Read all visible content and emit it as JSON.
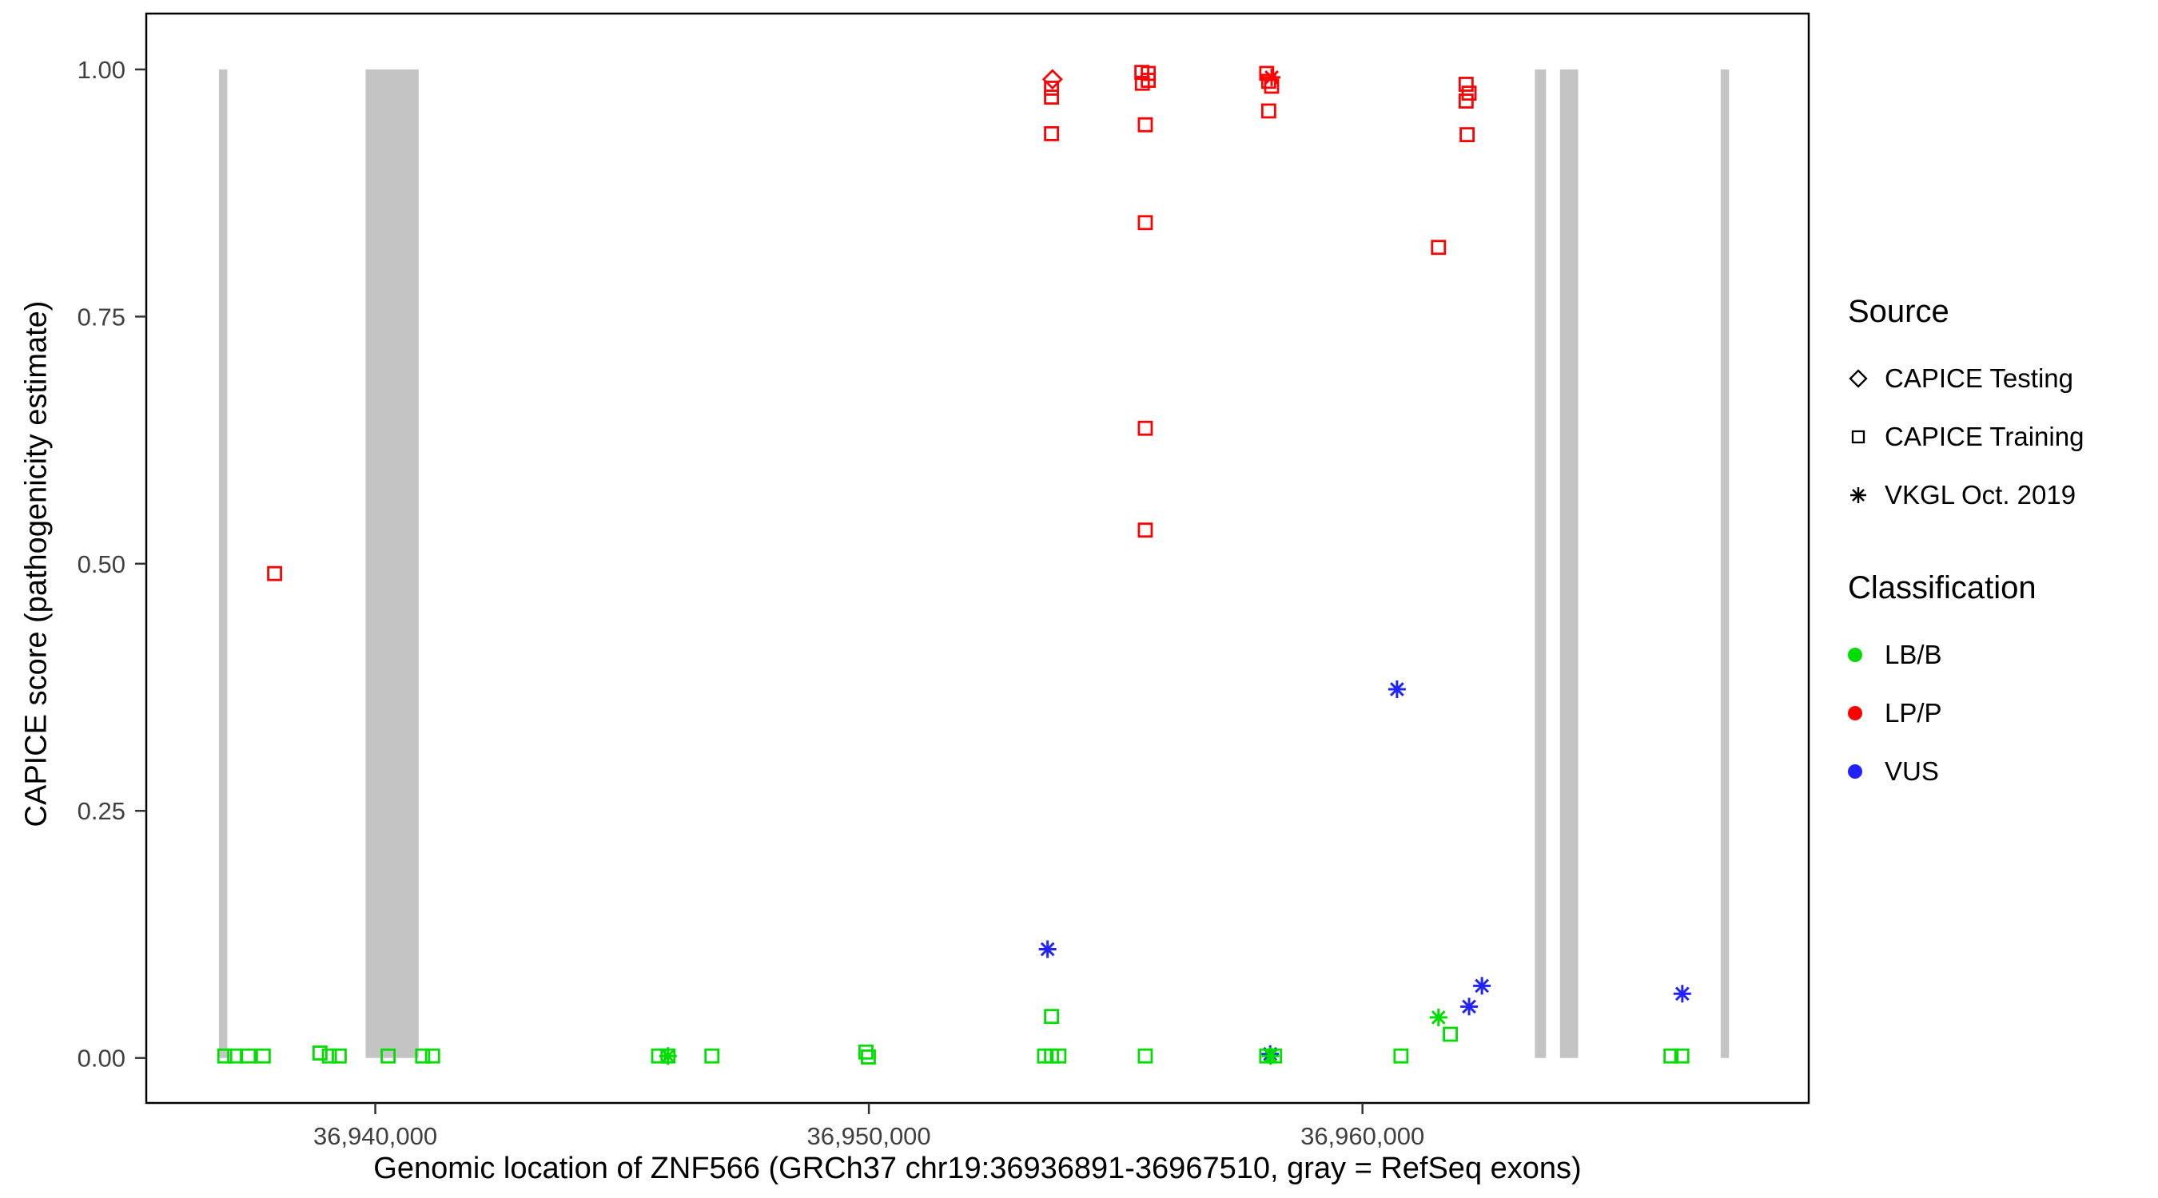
{
  "chart_data": {
    "type": "scatter",
    "title": "",
    "xlabel": "Genomic location of ZNF566 (GRCh37 chr19:36936891-36967510, gray = RefSeq exons)",
    "ylabel": "CAPICE score (pathogenicity estimate)",
    "xlim": [
      36935360,
      36969041
    ],
    "ylim": [
      -0.0455,
      1.0565
    ],
    "x_ticks": [
      {
        "value": 36940000,
        "label": "36,940,000"
      },
      {
        "value": 36950000,
        "label": "36,950,000"
      },
      {
        "value": 36960000,
        "label": "36,960,000"
      }
    ],
    "y_ticks": [
      {
        "value": 0.0,
        "label": "0.00"
      },
      {
        "value": 0.25,
        "label": "0.25"
      },
      {
        "value": 0.5,
        "label": "0.50"
      },
      {
        "value": 0.75,
        "label": "0.75"
      },
      {
        "value": 1.0,
        "label": "1.00"
      }
    ],
    "grid": false,
    "legend_position": "right",
    "colors": {
      "LB/B": "#00dd00",
      "LP/P": "#ff0000",
      "VUS": "#2222ff",
      "exon": "#c4c4c4",
      "axis_text": "#404040"
    },
    "exons": [
      [
        36936832,
        36937002
      ],
      [
        36939804,
        36940879
      ],
      [
        36963493,
        36963719
      ],
      [
        36964002,
        36964370
      ],
      [
        36967257,
        36967427
      ]
    ],
    "exon_band_yrange": [
      0.0,
      1.0
    ],
    "points": [
      {
        "x": 36937960,
        "y": 0.49,
        "cls": "LP/P",
        "src": "square"
      },
      {
        "x": 36953720,
        "y": 0.99,
        "cls": "LP/P",
        "src": "diamond"
      },
      {
        "x": 36953700,
        "y": 0.981,
        "cls": "LP/P",
        "src": "square"
      },
      {
        "x": 36953700,
        "y": 0.972,
        "cls": "LP/P",
        "src": "square"
      },
      {
        "x": 36953700,
        "y": 0.935,
        "cls": "LP/P",
        "src": "square"
      },
      {
        "x": 36955530,
        "y": 0.997,
        "cls": "LP/P",
        "src": "square"
      },
      {
        "x": 36955660,
        "y": 0.996,
        "cls": "LP/P",
        "src": "square"
      },
      {
        "x": 36955660,
        "y": 0.989,
        "cls": "LP/P",
        "src": "square"
      },
      {
        "x": 36955540,
        "y": 0.986,
        "cls": "LP/P",
        "src": "square"
      },
      {
        "x": 36955600,
        "y": 0.944,
        "cls": "LP/P",
        "src": "square"
      },
      {
        "x": 36955600,
        "y": 0.845,
        "cls": "LP/P",
        "src": "square"
      },
      {
        "x": 36955600,
        "y": 0.637,
        "cls": "LP/P",
        "src": "square"
      },
      {
        "x": 36955600,
        "y": 0.534,
        "cls": "LP/P",
        "src": "square"
      },
      {
        "x": 36958060,
        "y": 0.996,
        "cls": "LP/P",
        "src": "square"
      },
      {
        "x": 36958160,
        "y": 0.992,
        "cls": "LP/P",
        "src": "asterisk"
      },
      {
        "x": 36958100,
        "y": 0.988,
        "cls": "LP/P",
        "src": "square"
      },
      {
        "x": 36958160,
        "y": 0.983,
        "cls": "LP/P",
        "src": "square"
      },
      {
        "x": 36958100,
        "y": 0.958,
        "cls": "LP/P",
        "src": "square"
      },
      {
        "x": 36961540,
        "y": 0.82,
        "cls": "LP/P",
        "src": "square"
      },
      {
        "x": 36962100,
        "y": 0.985,
        "cls": "LP/P",
        "src": "square"
      },
      {
        "x": 36962160,
        "y": 0.976,
        "cls": "LP/P",
        "src": "square"
      },
      {
        "x": 36962100,
        "y": 0.968,
        "cls": "LP/P",
        "src": "square"
      },
      {
        "x": 36962120,
        "y": 0.934,
        "cls": "LP/P",
        "src": "square"
      },
      {
        "x": 36953620,
        "y": 0.11,
        "cls": "VUS",
        "src": "asterisk"
      },
      {
        "x": 36960700,
        "y": 0.373,
        "cls": "VUS",
        "src": "asterisk"
      },
      {
        "x": 36962420,
        "y": 0.073,
        "cls": "VUS",
        "src": "asterisk"
      },
      {
        "x": 36962160,
        "y": 0.052,
        "cls": "VUS",
        "src": "asterisk"
      },
      {
        "x": 36958130,
        "y": 0.004,
        "cls": "VUS",
        "src": "asterisk"
      },
      {
        "x": 36966480,
        "y": 0.065,
        "cls": "VUS",
        "src": "asterisk"
      },
      {
        "x": 36936950,
        "y": 0.002,
        "cls": "LB/B",
        "src": "square"
      },
      {
        "x": 36937150,
        "y": 0.002,
        "cls": "LB/B",
        "src": "square"
      },
      {
        "x": 36937430,
        "y": 0.002,
        "cls": "LB/B",
        "src": "square"
      },
      {
        "x": 36937730,
        "y": 0.002,
        "cls": "LB/B",
        "src": "square"
      },
      {
        "x": 36938880,
        "y": 0.005,
        "cls": "LB/B",
        "src": "square"
      },
      {
        "x": 36939070,
        "y": 0.002,
        "cls": "LB/B",
        "src": "square"
      },
      {
        "x": 36939270,
        "y": 0.002,
        "cls": "LB/B",
        "src": "square"
      },
      {
        "x": 36940260,
        "y": 0.002,
        "cls": "LB/B",
        "src": "square"
      },
      {
        "x": 36940960,
        "y": 0.002,
        "cls": "LB/B",
        "src": "square"
      },
      {
        "x": 36941160,
        "y": 0.002,
        "cls": "LB/B",
        "src": "square"
      },
      {
        "x": 36945740,
        "y": 0.002,
        "cls": "LB/B",
        "src": "square"
      },
      {
        "x": 36945930,
        "y": 0.002,
        "cls": "LB/B",
        "src": "square"
      },
      {
        "x": 36945930,
        "y": 0.002,
        "cls": "LB/B",
        "src": "asterisk"
      },
      {
        "x": 36946820,
        "y": 0.002,
        "cls": "LB/B",
        "src": "square"
      },
      {
        "x": 36949940,
        "y": 0.006,
        "cls": "LB/B",
        "src": "square"
      },
      {
        "x": 36949990,
        "y": 0.001,
        "cls": "LB/B",
        "src": "square"
      },
      {
        "x": 36953560,
        "y": 0.002,
        "cls": "LB/B",
        "src": "square"
      },
      {
        "x": 36953700,
        "y": 0.002,
        "cls": "LB/B",
        "src": "square"
      },
      {
        "x": 36953850,
        "y": 0.002,
        "cls": "LB/B",
        "src": "square"
      },
      {
        "x": 36953700,
        "y": 0.042,
        "cls": "LB/B",
        "src": "square"
      },
      {
        "x": 36955600,
        "y": 0.002,
        "cls": "LB/B",
        "src": "square"
      },
      {
        "x": 36958060,
        "y": 0.002,
        "cls": "LB/B",
        "src": "square"
      },
      {
        "x": 36958220,
        "y": 0.002,
        "cls": "LB/B",
        "src": "square"
      },
      {
        "x": 36958140,
        "y": 0.002,
        "cls": "LB/B",
        "src": "asterisk"
      },
      {
        "x": 36960780,
        "y": 0.002,
        "cls": "LB/B",
        "src": "square"
      },
      {
        "x": 36961780,
        "y": 0.024,
        "cls": "LB/B",
        "src": "square"
      },
      {
        "x": 36961540,
        "y": 0.041,
        "cls": "LB/B",
        "src": "asterisk"
      },
      {
        "x": 36966250,
        "y": 0.002,
        "cls": "LB/B",
        "src": "square"
      },
      {
        "x": 36966470,
        "y": 0.002,
        "cls": "LB/B",
        "src": "square"
      }
    ]
  },
  "legend": {
    "source": {
      "title": "Source",
      "items": [
        {
          "label": "CAPICE Testing",
          "marker": "diamond"
        },
        {
          "label": "CAPICE Training",
          "marker": "square"
        },
        {
          "label": "VKGL Oct. 2019",
          "marker": "asterisk"
        }
      ]
    },
    "classification": {
      "title": "Classification",
      "items": [
        {
          "label": "LB/B",
          "color": "#00dd00"
        },
        {
          "label": "LP/P",
          "color": "#ff0000"
        },
        {
          "label": "VUS",
          "color": "#2222ff"
        }
      ]
    }
  }
}
